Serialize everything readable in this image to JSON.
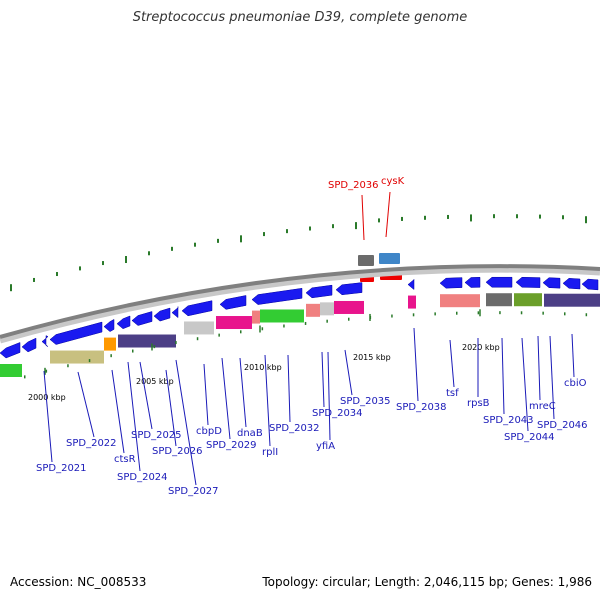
{
  "header": {
    "title": "Streptococcus pneumoniae D39, complete genome"
  },
  "footer": {
    "accession": "Accession: NC_008533",
    "stats": "Topology: circular; Length: 2,046,115 bp; Genes: 1,986"
  },
  "colors": {
    "backbone": "#888888",
    "gene_arrow": "#1a1af0",
    "label_highlight": "#e00000",
    "label_normal": "#1a1ab8",
    "tick": "#2a7a2a"
  },
  "kbp_ticks": [
    "2000 kbp",
    "2005 kbp",
    "2010 kbp",
    "2015 kbp",
    "2020 kbp"
  ],
  "gene_labels": [
    {
      "text": "SPD_2036",
      "highlight": true
    },
    {
      "text": "cysK",
      "highlight": true
    },
    {
      "text": "SPD_2021"
    },
    {
      "text": "SPD_2022"
    },
    {
      "text": "ctsR"
    },
    {
      "text": "SPD_2024"
    },
    {
      "text": "SPD_2025"
    },
    {
      "text": "SPD_2026"
    },
    {
      "text": "SPD_2027"
    },
    {
      "text": "cbpD"
    },
    {
      "text": "SPD_2029"
    },
    {
      "text": "dnaB"
    },
    {
      "text": "rplI"
    },
    {
      "text": "SPD_2032"
    },
    {
      "text": "SPD_2034"
    },
    {
      "text": "yfiA"
    },
    {
      "text": "SPD_2035"
    },
    {
      "text": "SPD_2038"
    },
    {
      "text": "tsf"
    },
    {
      "text": "rpsB"
    },
    {
      "text": "SPD_2043"
    },
    {
      "text": "SPD_2044"
    },
    {
      "text": "mreC"
    },
    {
      "text": "SPD_2046"
    },
    {
      "text": "cbiO"
    }
  ]
}
